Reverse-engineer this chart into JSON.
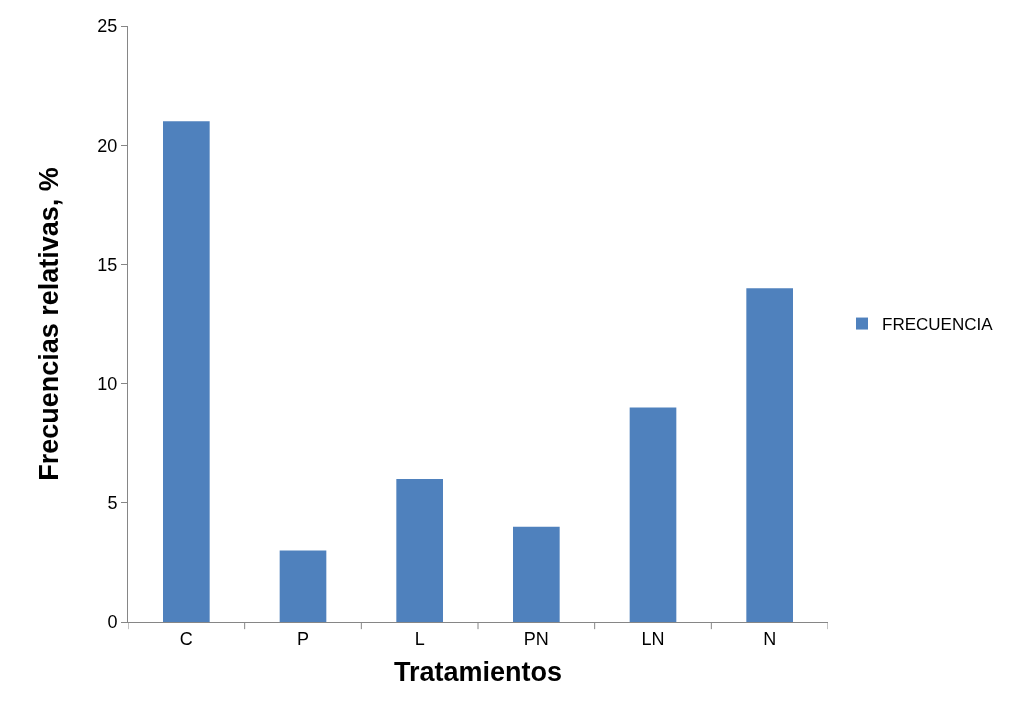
{
  "chart_data": {
    "type": "bar",
    "xlabel": "Tratamientos",
    "ylabel": "Frecuencias relativas, %",
    "categories": [
      "C",
      "P",
      "L",
      "PN",
      "LN",
      "N"
    ],
    "series": [
      {
        "name": "FRECUENCIA",
        "color": "#4f81bd",
        "values": [
          21,
          3,
          6,
          4,
          9,
          14
        ]
      }
    ],
    "ylim": [
      0,
      25
    ],
    "yticks": [
      0,
      5,
      10,
      15,
      20,
      25
    ],
    "grid": false,
    "legend": "right"
  }
}
